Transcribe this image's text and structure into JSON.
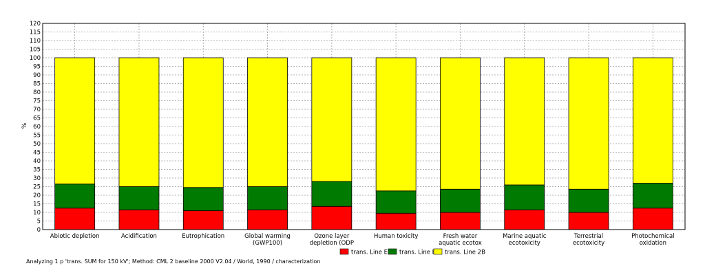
{
  "chart_data": {
    "type": "bar",
    "stacked": true,
    "ylabel": "%",
    "ylim": [
      0,
      120
    ],
    "ytick_step": 5,
    "grid": true,
    "legend_position": "bottom",
    "categories": [
      [
        "Abiotic depletion"
      ],
      [
        "Acidification"
      ],
      [
        "Eutrophication"
      ],
      [
        "Global warming",
        "(GWP100)"
      ],
      [
        "Ozone layer",
        "depletion (ODP"
      ],
      [
        "Human toxicity"
      ],
      [
        "Fresh water",
        "aquatic ecotox"
      ],
      [
        "Marine aquatic",
        "ecotoxicity"
      ],
      [
        "Terrestrial",
        "ecotoxicity"
      ],
      [
        "Photochemical",
        "oxidation"
      ]
    ],
    "series": [
      {
        "name": "trans. Line E",
        "color": "#ff0000",
        "values": [
          12.5,
          11.5,
          11,
          11.5,
          13.5,
          9.5,
          10,
          11.5,
          10,
          12.5
        ]
      },
      {
        "name": "trans. Line B",
        "color": "#007a00",
        "values": [
          14,
          13.5,
          13.5,
          13.5,
          14.5,
          13,
          13.5,
          14.5,
          13.5,
          14.5
        ]
      },
      {
        "name": "trans. Line 2B",
        "color": "#ffff00",
        "values": [
          73.5,
          75,
          75.5,
          75,
          72,
          77.5,
          76.5,
          74,
          76.5,
          73
        ]
      }
    ]
  },
  "footer": "Analyzing 1 p 'trans. SUM for 150 kV';  Method: CML 2 baseline 2000 V2.04 /  World, 1990 / characterization"
}
